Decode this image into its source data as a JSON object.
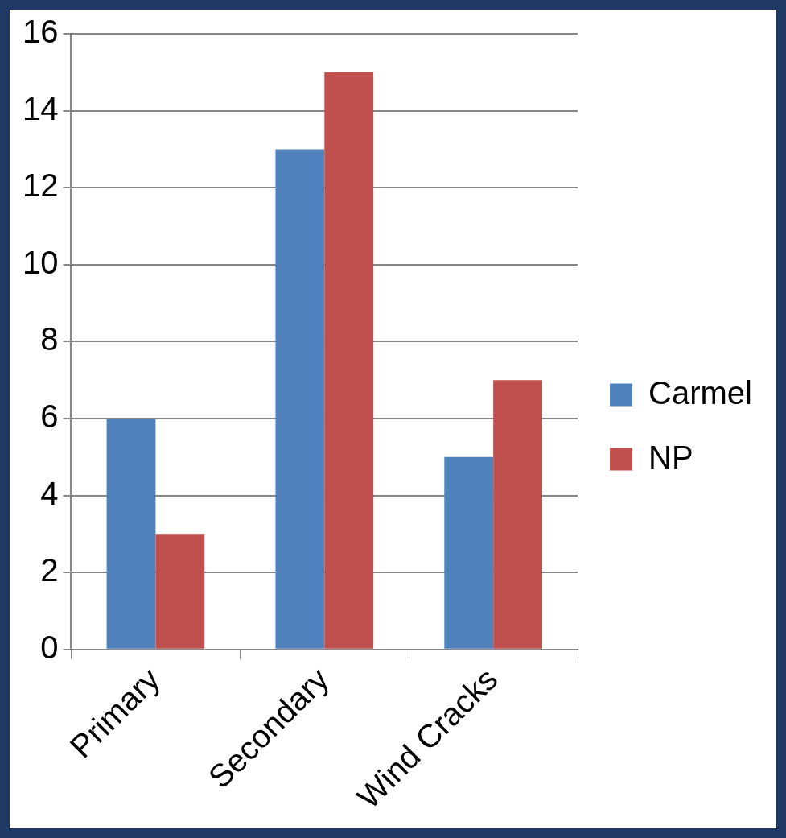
{
  "chart_data": {
    "type": "bar",
    "categories": [
      "Primary",
      "Secondary",
      "Wind Cracks"
    ],
    "series": [
      {
        "name": "Carmel",
        "color": "#4f81bd",
        "values": [
          6,
          13,
          5
        ]
      },
      {
        "name": "NP",
        "color": "#c0504d",
        "values": [
          3,
          15,
          7
        ]
      }
    ],
    "ylim": [
      0,
      16
    ],
    "yticks": [
      0,
      2,
      4,
      6,
      8,
      10,
      12,
      14,
      16
    ],
    "grid": "y",
    "legend": "right"
  }
}
